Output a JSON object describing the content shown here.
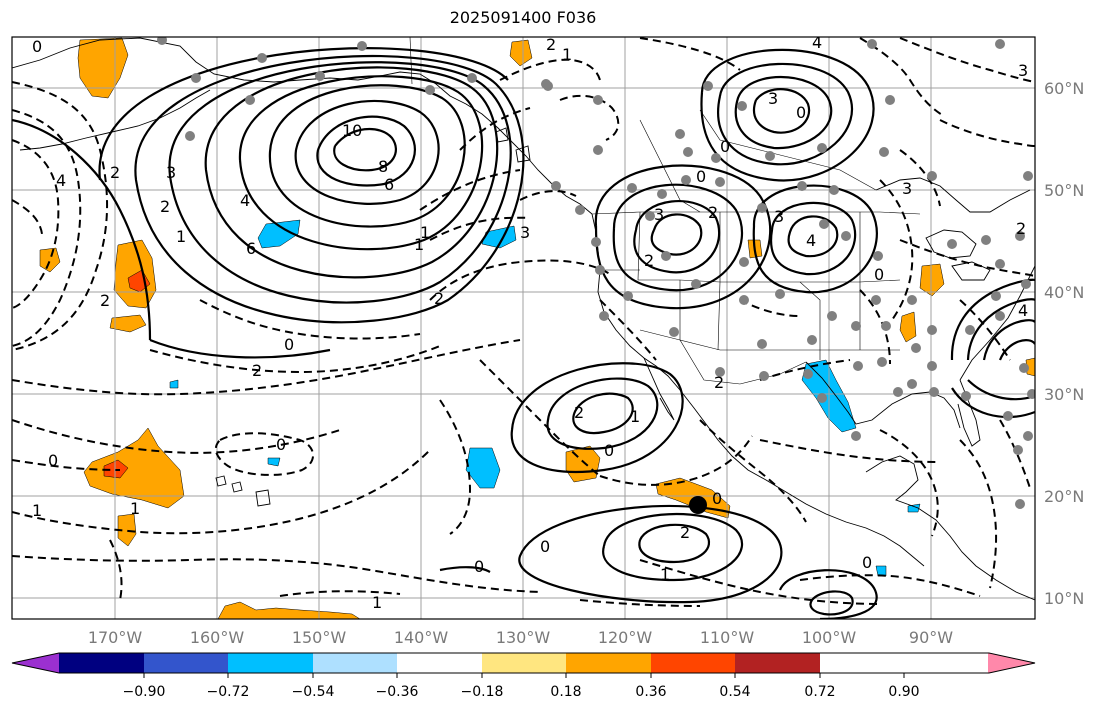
{
  "title": "2025091400 F036",
  "map": {
    "lat_labels": [
      "60°N",
      "50°N",
      "40°N",
      "30°N",
      "20°N",
      "10°N"
    ],
    "lon_labels": [
      "170°W",
      "160°W",
      "150°W",
      "140°W",
      "130°W",
      "120°W",
      "110°W",
      "100°W",
      "90°W"
    ],
    "contour_labels": [
      {
        "text": "0"
      },
      {
        "text": "2"
      },
      {
        "text": "1"
      },
      {
        "text": "4"
      },
      {
        "text": "3"
      },
      {
        "text": "4"
      },
      {
        "text": "2"
      },
      {
        "text": "3"
      },
      {
        "text": "2"
      },
      {
        "text": "1"
      },
      {
        "text": "10"
      },
      {
        "text": "8"
      },
      {
        "text": "6"
      },
      {
        "text": "4"
      },
      {
        "text": "6"
      },
      {
        "text": "1"
      },
      {
        "text": "3"
      },
      {
        "text": "2"
      },
      {
        "text": "3"
      },
      {
        "text": "2"
      },
      {
        "text": "0"
      },
      {
        "text": "2"
      },
      {
        "text": "0"
      },
      {
        "text": "3"
      },
      {
        "text": "0"
      },
      {
        "text": "2"
      },
      {
        "text": "1"
      },
      {
        "text": "0"
      },
      {
        "text": "2"
      },
      {
        "text": "0"
      },
      {
        "text": "0"
      },
      {
        "text": "1"
      },
      {
        "text": "2"
      },
      {
        "text": "1"
      },
      {
        "text": "0"
      },
      {
        "text": "1"
      },
      {
        "text": "0"
      },
      {
        "text": "0"
      },
      {
        "text": "1"
      },
      {
        "text": "2"
      },
      {
        "text": "0"
      },
      {
        "text": "4"
      },
      {
        "text": "3"
      },
      {
        "text": "2"
      },
      {
        "text": "0"
      },
      {
        "text": "3"
      },
      {
        "text": "2"
      },
      {
        "text": "4"
      },
      {
        "text": "0"
      },
      {
        "text": "1"
      }
    ]
  },
  "colorbar": {
    "ticks": [
      "−0.90",
      "−0.72",
      "−0.54",
      "−0.36",
      "−0.18",
      "0.18",
      "0.36",
      "0.54",
      "0.72",
      "0.90"
    ],
    "colors": [
      "#9b30d0",
      "#000080",
      "#3355cc",
      "#00bfff",
      "#aee0ff",
      "#ffffff",
      "#ffe680",
      "#ffa500",
      "#ff4500",
      "#b22222",
      "#ff88aa"
    ]
  },
  "colors": {
    "positive_fill": "#ffa500",
    "strong_positive_fill": "#ff4500",
    "negative_fill": "#00bfff",
    "grid": "#a0a0a0",
    "coast": "#000000"
  }
}
